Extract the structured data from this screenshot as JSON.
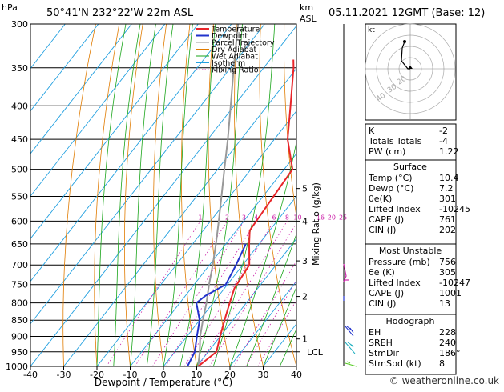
{
  "header": {
    "hpa_label": "hPa",
    "location": "50°41'N 232°22'W 22m ASL",
    "km_label": "km",
    "asl_label": "ASL",
    "datetime": "05.11.2021 12GMT (Base: 12)"
  },
  "chart_data": {
    "type": "skew-t",
    "xlabel": "Dewpoint / Temperature (°C)",
    "ylabel_right": "Mixing Ratio (g/kg)",
    "x_ticks": [
      -40,
      -30,
      -20,
      -10,
      0,
      10,
      20,
      30,
      40
    ],
    "pressure_ticks": [
      300,
      350,
      400,
      450,
      500,
      550,
      600,
      650,
      700,
      750,
      800,
      850,
      900,
      950,
      1000
    ],
    "km_ticks": [
      {
        "label": "1",
        "p": 908
      },
      {
        "label": "2",
        "p": 782
      },
      {
        "label": "3",
        "p": 690
      },
      {
        "label": "4",
        "p": 600
      },
      {
        "label": "5",
        "p": 535
      }
    ],
    "lcl": {
      "label": "LCL",
      "p": 950
    },
    "mixing_ratios": [
      "1",
      "2",
      "3",
      "4",
      "6",
      "8",
      "10",
      "16",
      "20",
      "25"
    ],
    "legend": [
      {
        "name": "Temperature",
        "color": "#e8262a"
      },
      {
        "name": "Dewpoint",
        "color": "#2233cc"
      },
      {
        "name": "Parcel Trajectory",
        "color": "#999999"
      },
      {
        "name": "Dry Adiabat",
        "color": "#e07b00"
      },
      {
        "name": "Wet Adiabat",
        "color": "#1aa51a"
      },
      {
        "name": "Isotherm",
        "color": "#22a0e0"
      },
      {
        "name": "Mixing Ratio",
        "color": "#cc22aa"
      }
    ],
    "temperature": [
      [
        1000,
        10.4
      ],
      [
        950,
        12.5
      ],
      [
        900,
        10
      ],
      [
        850,
        7.5
      ],
      [
        800,
        5
      ],
      [
        760,
        3
      ],
      [
        700,
        2
      ],
      [
        650,
        -3
      ],
      [
        620,
        -6
      ],
      [
        500,
        -7.5
      ],
      [
        450,
        -16
      ],
      [
        400,
        -23
      ],
      [
        350,
        -31
      ],
      [
        340,
        -33
      ]
    ],
    "dewpoint": [
      [
        1000,
        7.2
      ],
      [
        950,
        6
      ],
      [
        900,
        3
      ],
      [
        850,
        0
      ],
      [
        800,
        -5
      ],
      [
        780,
        -4
      ],
      [
        750,
        -0.5
      ],
      [
        700,
        -2
      ],
      [
        650,
        -4
      ]
    ],
    "parcel": [
      [
        1000,
        10.4
      ],
      [
        950,
        7.5
      ],
      [
        900,
        4
      ],
      [
        850,
        1
      ],
      [
        800,
        -2
      ],
      [
        750,
        -5.5
      ],
      [
        700,
        -9
      ],
      [
        650,
        -13
      ],
      [
        600,
        -17.5
      ],
      [
        550,
        -22.5
      ],
      [
        500,
        -28
      ],
      [
        450,
        -34
      ],
      [
        400,
        -41
      ],
      [
        350,
        -49
      ],
      [
        300,
        -58
      ]
    ]
  },
  "hodograph": {
    "label": "kt",
    "ring_labels": [
      "20",
      "30",
      "40"
    ]
  },
  "indices": [
    {
      "label": "K",
      "value": "-2"
    },
    {
      "label": "Totals Totals",
      "value": "-4"
    },
    {
      "label": "PW (cm)",
      "value": "1.22"
    }
  ],
  "surface": {
    "title": "Surface",
    "rows": [
      {
        "label": "Temp (°C)",
        "value": "10.4"
      },
      {
        "label": "Dewp (°C)",
        "value": "7.2"
      },
      {
        "label": "θe(K)",
        "value": "301"
      },
      {
        "label": "Lifted Index",
        "value": "-10245"
      },
      {
        "label": "CAPE (J)",
        "value": "761"
      },
      {
        "label": "CIN (J)",
        "value": "202"
      }
    ]
  },
  "most_unstable": {
    "title": "Most Unstable",
    "rows": [
      {
        "label": "Pressure (mb)",
        "value": "756"
      },
      {
        "label": "θe (K)",
        "value": "305"
      },
      {
        "label": "Lifted Index",
        "value": "-10247"
      },
      {
        "label": "CAPE (J)",
        "value": "1001"
      },
      {
        "label": "CIN (J)",
        "value": "13"
      }
    ]
  },
  "hodograph_table": {
    "title": "Hodograph",
    "rows": [
      {
        "label": "EH",
        "value": "228"
      },
      {
        "label": "SREH",
        "value": "240"
      },
      {
        "label": "StmDir",
        "value": "186°"
      },
      {
        "label": "StmSpd (kt)",
        "value": "8"
      }
    ]
  },
  "footer": {
    "copyright": "© weatheronline.co.uk"
  }
}
